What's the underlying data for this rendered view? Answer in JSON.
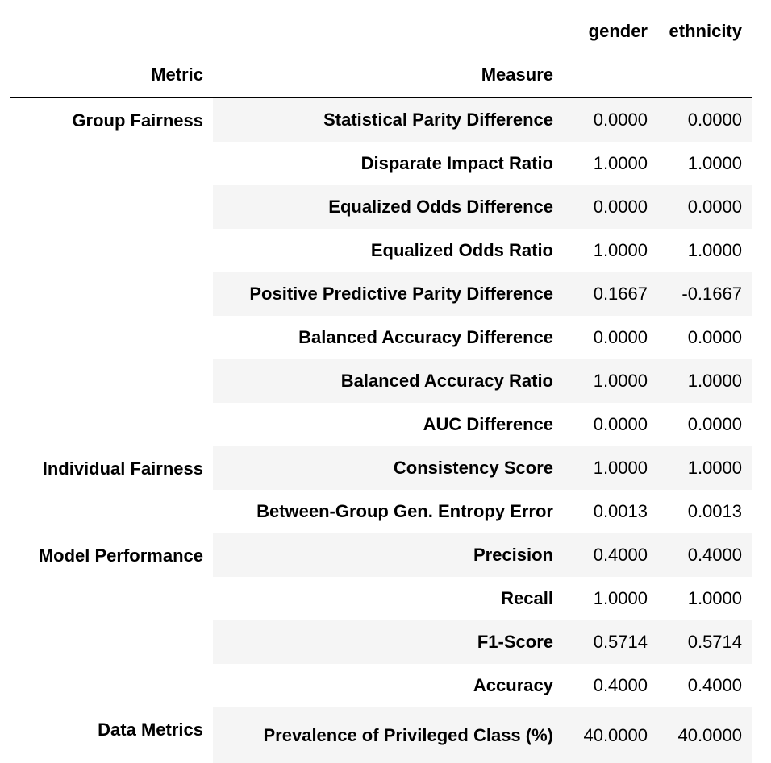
{
  "columns": [
    "gender",
    "ethnicity"
  ],
  "index_headers": {
    "metric": "Metric",
    "measure": "Measure"
  },
  "groups": [
    {
      "metric": "Group Fairness",
      "rows": [
        {
          "measure": "Statistical Parity Difference",
          "values": [
            "0.0000",
            "0.0000"
          ]
        },
        {
          "measure": "Disparate Impact Ratio",
          "values": [
            "1.0000",
            "1.0000"
          ]
        },
        {
          "measure": "Equalized Odds Difference",
          "values": [
            "0.0000",
            "0.0000"
          ]
        },
        {
          "measure": "Equalized Odds Ratio",
          "values": [
            "1.0000",
            "1.0000"
          ]
        },
        {
          "measure": "Positive Predictive Parity Difference",
          "values": [
            "0.1667",
            "-0.1667"
          ]
        },
        {
          "measure": "Balanced Accuracy Difference",
          "values": [
            "0.0000",
            "0.0000"
          ]
        },
        {
          "measure": "Balanced Accuracy Ratio",
          "values": [
            "1.0000",
            "1.0000"
          ]
        },
        {
          "measure": "AUC Difference",
          "values": [
            "0.0000",
            "0.0000"
          ]
        }
      ]
    },
    {
      "metric": "Individual Fairness",
      "rows": [
        {
          "measure": "Consistency Score",
          "values": [
            "1.0000",
            "1.0000"
          ]
        },
        {
          "measure": "Between-Group Gen. Entropy Error",
          "values": [
            "0.0013",
            "0.0013"
          ]
        }
      ]
    },
    {
      "metric": "Model Performance",
      "rows": [
        {
          "measure": "Precision",
          "values": [
            "0.4000",
            "0.4000"
          ]
        },
        {
          "measure": "Recall",
          "values": [
            "1.0000",
            "1.0000"
          ]
        },
        {
          "measure": "F1-Score",
          "values": [
            "0.5714",
            "0.5714"
          ]
        },
        {
          "measure": "Accuracy",
          "values": [
            "0.4000",
            "0.4000"
          ]
        }
      ]
    },
    {
      "metric": "Data Metrics",
      "rows": [
        {
          "measure": "Prevalence of Privileged Class (%)",
          "values": [
            "40.0000",
            "40.0000"
          ]
        }
      ]
    }
  ]
}
